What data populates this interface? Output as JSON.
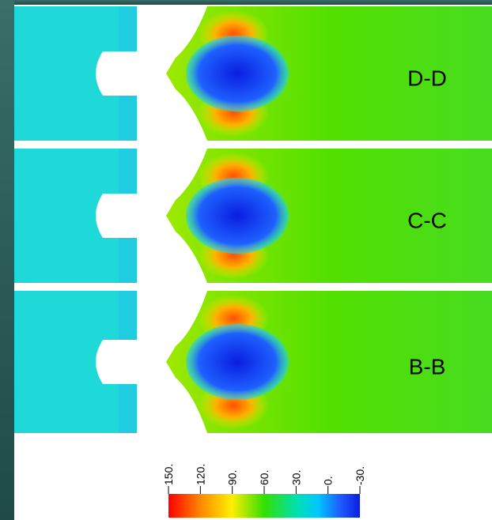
{
  "panels": [
    {
      "label": "D-D"
    },
    {
      "label": "C-C"
    },
    {
      "label": "B-B"
    }
  ],
  "colorbar": {
    "ticks": [
      "150.",
      "120.",
      "90.",
      "60.",
      "30.",
      "0.",
      "-30."
    ]
  }
}
